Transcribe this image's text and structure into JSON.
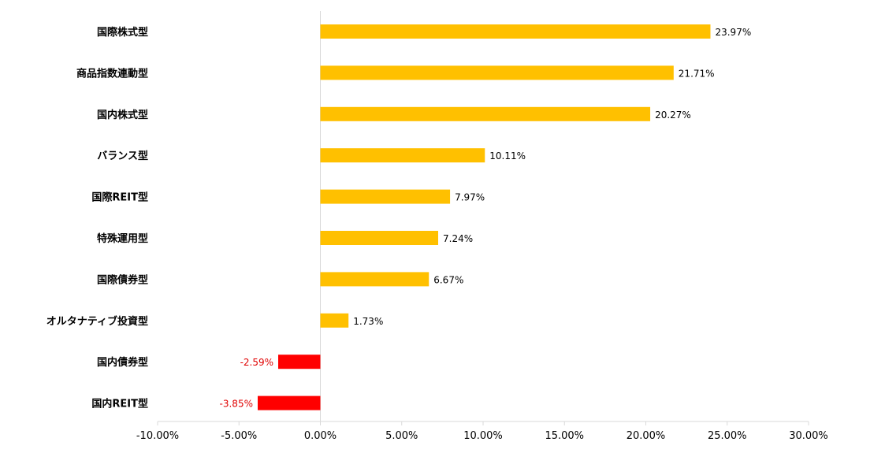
{
  "chart_data": {
    "type": "bar",
    "orientation": "horizontal",
    "categories": [
      "国際株式型",
      "商品指数連動型",
      "国内株式型",
      "バランス型",
      "国際REIT型",
      "特殊運用型",
      "国際債券型",
      "オルタナティブ投資型",
      "国内債券型",
      "国内REIT型"
    ],
    "values": [
      23.97,
      21.71,
      20.27,
      10.11,
      7.97,
      7.24,
      6.67,
      1.73,
      -2.59,
      -3.85
    ],
    "value_labels": [
      "23.97%",
      "21.71%",
      "20.27%",
      "10.11%",
      "7.97%",
      "7.24%",
      "6.67%",
      "1.73%",
      "-2.59%",
      "-3.85%"
    ],
    "x_ticks": [
      -10,
      -5,
      0,
      5,
      10,
      15,
      20,
      25,
      30
    ],
    "x_tick_labels": [
      "-10.00%",
      "-5.00%",
      "0.00%",
      "5.00%",
      "10.00%",
      "15.00%",
      "20.00%",
      "25.00%",
      "30.00%"
    ],
    "xlim": [
      -10,
      30
    ],
    "title": "",
    "xlabel": "",
    "ylabel": "",
    "grid": false,
    "legend": "none",
    "colors": {
      "positive": "#FFC000",
      "negative": "#FF0000",
      "negative_label": "#E00000",
      "axis": "#D9D9D9"
    }
  }
}
